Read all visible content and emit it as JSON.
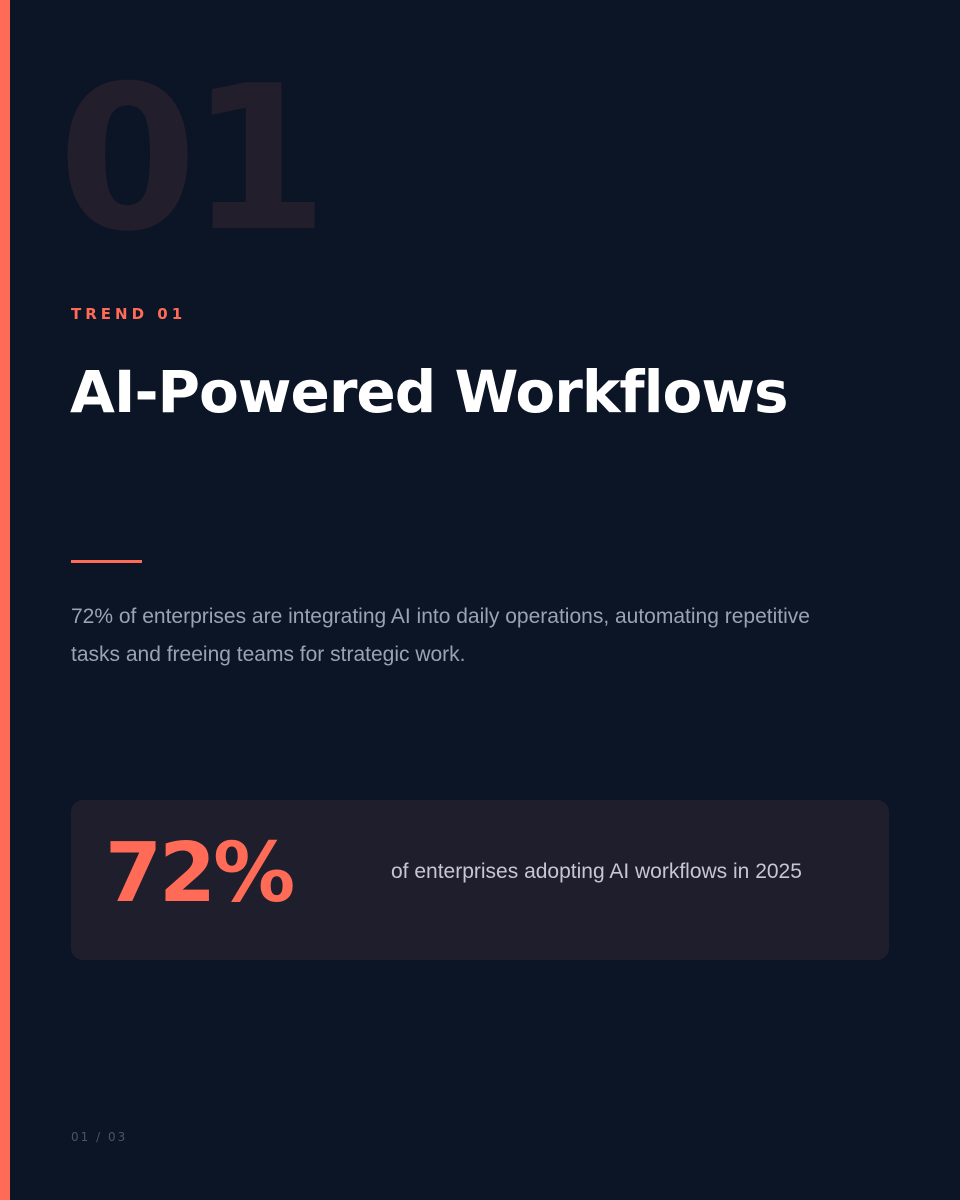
{
  "slide": {
    "number_watermark": "01",
    "eyebrow": "TREND 01",
    "title": "AI-Powered Workflows",
    "body": "72% of enterprises are integrating AI into daily operations, automating repetitive tasks and freeing teams for strategic work.",
    "stat": {
      "value": "72%",
      "label": "of enterprises adopting AI workflows in 2025"
    },
    "page_indicator": "01 / 03"
  },
  "colors": {
    "background": "#0b1526",
    "accent": "#ff6b57",
    "card": "#1f1e2d"
  }
}
